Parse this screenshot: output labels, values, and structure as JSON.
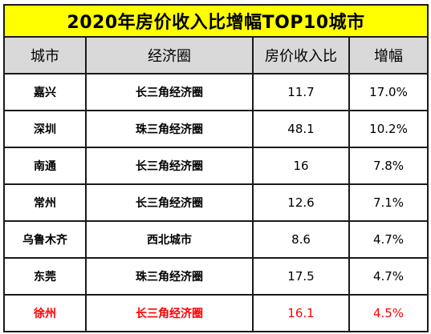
{
  "table": {
    "title": "2020年房价收入比增幅TOP10城市",
    "columns": [
      "城市",
      "经济圈",
      "房价收入比",
      "增幅"
    ],
    "rows": [
      {
        "city": "嘉兴",
        "region": "长三角经济圈",
        "ratio": "11.7",
        "growth": "17.0%"
      },
      {
        "city": "深圳",
        "region": "珠三角经济圈",
        "ratio": "48.1",
        "growth": "10.2%"
      },
      {
        "city": "南通",
        "region": "长三角经济圈",
        "ratio": "16",
        "growth": "7.8%"
      },
      {
        "city": "常州",
        "region": "长三角经济圈",
        "ratio": "12.6",
        "growth": "7.1%"
      },
      {
        "city": "乌鲁木齐",
        "region": "西北城市",
        "ratio": "8.6",
        "growth": "4.7%"
      },
      {
        "city": "东莞",
        "region": "珠三角经济圈",
        "ratio": "17.5",
        "growth": "4.7%"
      },
      {
        "city": "徐州",
        "region": "长三角经济圈",
        "ratio": "16.1",
        "growth": "4.5%"
      }
    ],
    "highlight_color": "#ff0000",
    "title_bg_color": "#ffff00",
    "header_bg_color": "#d9d9d9"
  }
}
